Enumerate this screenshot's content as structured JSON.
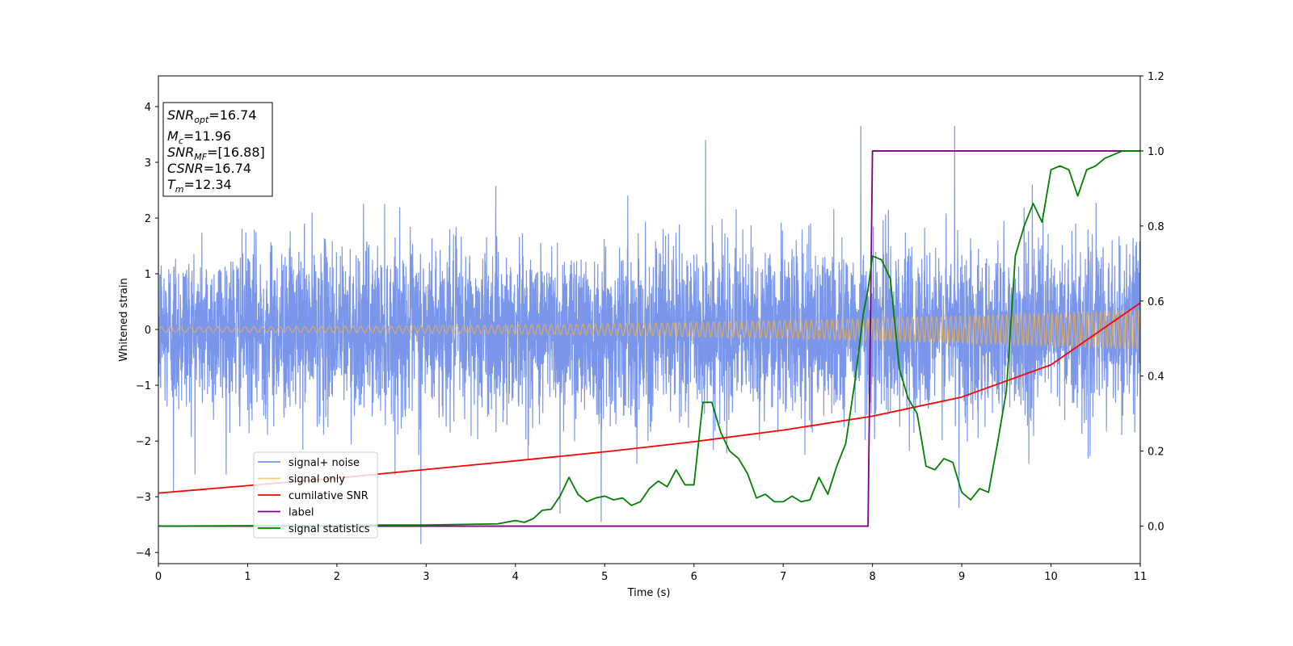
{
  "chart_data": {
    "type": "line",
    "xlabel": "Time (s)",
    "ylabel": "Whitened strain",
    "xlim": [
      0,
      11
    ],
    "ylim_left": [
      -4.2,
      4.55
    ],
    "ylim_right": [
      -0.1,
      1.2
    ],
    "x_ticks": [
      0,
      1,
      2,
      3,
      4,
      5,
      6,
      7,
      8,
      9,
      10,
      11
    ],
    "y_ticks_left": [
      -4,
      -3,
      -2,
      -1,
      0,
      1,
      2,
      3,
      4
    ],
    "y_ticks_right": [
      0.0,
      0.2,
      0.4,
      0.6,
      0.8,
      1.0,
      1.2
    ],
    "grid": false,
    "legend_position": "lower-left",
    "annotation": [
      {
        "var": "SNR",
        "sub": "opt",
        "text": "=16.74"
      },
      {
        "var": "M",
        "sub": "c",
        "text": "=11.96"
      },
      {
        "var": "SNR",
        "sub": "MF",
        "text": "=[16.88]"
      },
      {
        "var": "CSNR",
        "sub": "",
        "text": "=16.74"
      },
      {
        "var": "T",
        "sub": "m",
        "text": "=12.34"
      }
    ],
    "series": [
      {
        "name": "signal+ noise",
        "axis": "left",
        "color": "#4169e1",
        "style": "noise",
        "amplitude": 0.75,
        "peaks": [
          {
            "x": 7.87,
            "y": 3.65
          },
          {
            "x": 8.92,
            "y": 3.65
          },
          {
            "x": 6.13,
            "y": 3.4
          },
          {
            "x": 2.94,
            "y": -3.85
          },
          {
            "x": 8.97,
            "y": -3.2
          },
          {
            "x": 0.17,
            "y": -2.9
          },
          {
            "x": 4.96,
            "y": -3.45
          },
          {
            "x": 4.5,
            "y": -3.3
          }
        ]
      },
      {
        "name": "signal only",
        "axis": "left",
        "color": "#f5b041",
        "style": "chirp",
        "amplitude_start": 0.05,
        "amplitude_end": 0.35
      },
      {
        "name": "cumilative SNR",
        "axis": "right",
        "color": "#ff0000",
        "x": [
          0,
          1,
          2,
          3,
          4,
          5,
          6,
          7,
          8,
          9,
          10,
          11
        ],
        "y": [
          0.088,
          0.108,
          0.128,
          0.151,
          0.174,
          0.198,
          0.225,
          0.256,
          0.293,
          0.344,
          0.43,
          0.595
        ]
      },
      {
        "name": "label",
        "axis": "right",
        "color": "#800080",
        "x": [
          0,
          7.95,
          8.0,
          11
        ],
        "y": [
          0.0,
          0.0,
          1.0,
          1.0
        ]
      },
      {
        "name": "signal statistics",
        "axis": "right",
        "color": "#008000",
        "x": [
          0,
          1,
          2,
          2.5,
          3,
          3.5,
          3.8,
          4.0,
          4.1,
          4.2,
          4.3,
          4.4,
          4.5,
          4.6,
          4.7,
          4.8,
          4.9,
          5.0,
          5.1,
          5.2,
          5.3,
          5.4,
          5.5,
          5.6,
          5.7,
          5.8,
          5.9,
          6.0,
          6.1,
          6.2,
          6.3,
          6.4,
          6.5,
          6.6,
          6.7,
          6.8,
          6.9,
          7.0,
          7.1,
          7.2,
          7.3,
          7.4,
          7.5,
          7.6,
          7.7,
          7.8,
          7.9,
          7.95,
          8.0,
          8.1,
          8.2,
          8.3,
          8.4,
          8.5,
          8.6,
          8.7,
          8.8,
          8.9,
          9.0,
          9.1,
          9.2,
          9.3,
          9.4,
          9.5,
          9.6,
          9.7,
          9.8,
          9.9,
          10.0,
          10.1,
          10.2,
          10.3,
          10.4,
          10.5,
          10.6,
          10.7,
          10.8,
          10.9,
          11.0
        ],
        "y": [
          0.0,
          0.001,
          0.001,
          0.003,
          0.003,
          0.005,
          0.006,
          0.015,
          0.01,
          0.02,
          0.042,
          0.045,
          0.08,
          0.13,
          0.085,
          0.065,
          0.075,
          0.08,
          0.07,
          0.075,
          0.055,
          0.065,
          0.1,
          0.12,
          0.105,
          0.15,
          0.11,
          0.11,
          0.33,
          0.33,
          0.25,
          0.2,
          0.18,
          0.14,
          0.075,
          0.085,
          0.065,
          0.065,
          0.08,
          0.065,
          0.07,
          0.13,
          0.085,
          0.16,
          0.22,
          0.38,
          0.57,
          0.63,
          0.72,
          0.71,
          0.66,
          0.42,
          0.34,
          0.3,
          0.16,
          0.15,
          0.18,
          0.17,
          0.09,
          0.07,
          0.1,
          0.09,
          0.22,
          0.36,
          0.72,
          0.8,
          0.86,
          0.81,
          0.95,
          0.96,
          0.95,
          0.88,
          0.95,
          0.96,
          0.98,
          0.99,
          1.0,
          1.0,
          1.0
        ]
      }
    ]
  }
}
